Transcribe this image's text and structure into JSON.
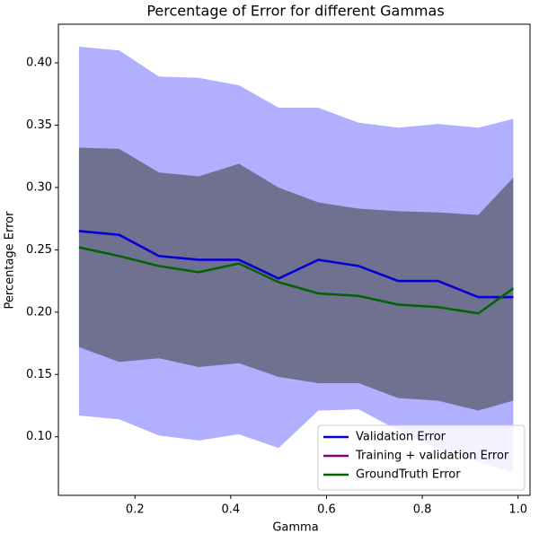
{
  "chart_data": {
    "type": "line",
    "title": "Percentage of Error for different Gammas",
    "xlabel": "Gamma",
    "ylabel": "Percentage Error",
    "x": [
      0.083,
      0.167,
      0.25,
      0.333,
      0.417,
      0.5,
      0.583,
      0.667,
      0.75,
      0.833,
      0.917,
      0.99
    ],
    "bands": [
      {
        "color": "#b0b0ff",
        "upper": [
          0.413,
          0.41,
          0.389,
          0.388,
          0.382,
          0.364,
          0.364,
          0.352,
          0.348,
          0.351,
          0.348,
          0.355
        ],
        "lower": [
          0.117,
          0.114,
          0.101,
          0.097,
          0.102,
          0.091,
          0.121,
          0.122,
          0.105,
          0.09,
          0.08,
          0.071
        ]
      },
      {
        "color": "#707090",
        "upper": [
          0.332,
          0.331,
          0.312,
          0.309,
          0.319,
          0.3,
          0.288,
          0.283,
          0.281,
          0.28,
          0.278,
          0.308
        ],
        "lower": [
          0.172,
          0.16,
          0.163,
          0.156,
          0.159,
          0.148,
          0.143,
          0.143,
          0.131,
          0.129,
          0.121,
          0.129
        ]
      }
    ],
    "series": [
      {
        "name": "Training + validation Error",
        "color": "#800080",
        "values": [
          0.265,
          0.262,
          0.245,
          0.242,
          0.242,
          0.227,
          0.242,
          0.237,
          0.225,
          0.225,
          0.212,
          0.212
        ]
      },
      {
        "name": "Validation Error",
        "color": "#0000dd",
        "values": [
          0.265,
          0.262,
          0.245,
          0.242,
          0.242,
          0.227,
          0.242,
          0.237,
          0.225,
          0.225,
          0.212,
          0.212
        ]
      },
      {
        "name": "GroundTruth Error",
        "color": "#006400",
        "values": [
          0.252,
          0.245,
          0.237,
          0.232,
          0.239,
          0.224,
          0.215,
          0.213,
          0.206,
          0.204,
          0.199,
          0.219
        ]
      }
    ],
    "legend_order": [
      1,
      0,
      2
    ],
    "legend": "lower right",
    "xlim": [
      0.04,
      1.025
    ],
    "ylim": [
      0.053,
      0.431
    ],
    "xticks": [
      0.2,
      0.4,
      0.6,
      0.8,
      {
        "value": 1.0,
        "label": "1.0"
      }
    ],
    "yticks": [
      {
        "value": 0.1,
        "label": "0.10"
      },
      {
        "value": 0.15,
        "label": "0.15"
      },
      {
        "value": 0.2,
        "label": "0.20"
      },
      {
        "value": 0.25,
        "label": "0.25"
      },
      {
        "value": 0.3,
        "label": "0.30"
      },
      {
        "value": 0.35,
        "label": "0.35"
      },
      {
        "value": 0.4,
        "label": "0.40"
      }
    ]
  }
}
